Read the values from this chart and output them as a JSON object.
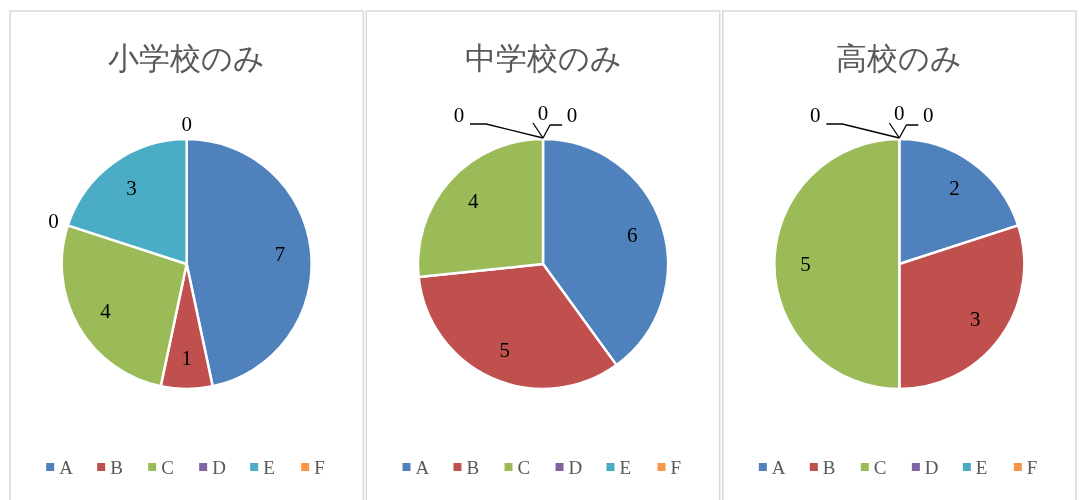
{
  "chart_data": [
    {
      "type": "pie",
      "title": "小学校のみ",
      "categories": [
        "A",
        "B",
        "C",
        "D",
        "E",
        "F"
      ],
      "values": [
        7,
        1,
        4,
        0,
        3,
        0
      ],
      "value_labels": [
        "7",
        "1",
        "4",
        "0",
        "3",
        "0"
      ],
      "colors": [
        "#4f81bd",
        "#c0504d",
        "#9bbb59",
        "#8064a2",
        "#4bacc6",
        "#f79646"
      ],
      "legend": "bottom"
    },
    {
      "type": "pie",
      "title": "中学校のみ",
      "categories": [
        "A",
        "B",
        "C",
        "D",
        "E",
        "F"
      ],
      "values": [
        6,
        5,
        4,
        0,
        0,
        0
      ],
      "value_labels": [
        "6",
        "5",
        "4",
        "0",
        "0",
        "0"
      ],
      "colors": [
        "#4f81bd",
        "#c0504d",
        "#9bbb59",
        "#8064a2",
        "#4bacc6",
        "#f79646"
      ],
      "legend": "bottom"
    },
    {
      "type": "pie",
      "title": "高校のみ",
      "categories": [
        "A",
        "B",
        "C",
        "D",
        "E",
        "F"
      ],
      "values": [
        2,
        3,
        5,
        0,
        0,
        0
      ],
      "value_labels": [
        "2",
        "3",
        "5",
        "0",
        "0",
        "0"
      ],
      "colors": [
        "#4f81bd",
        "#c0504d",
        "#9bbb59",
        "#8064a2",
        "#4bacc6",
        "#f79646"
      ],
      "legend": "bottom"
    }
  ]
}
